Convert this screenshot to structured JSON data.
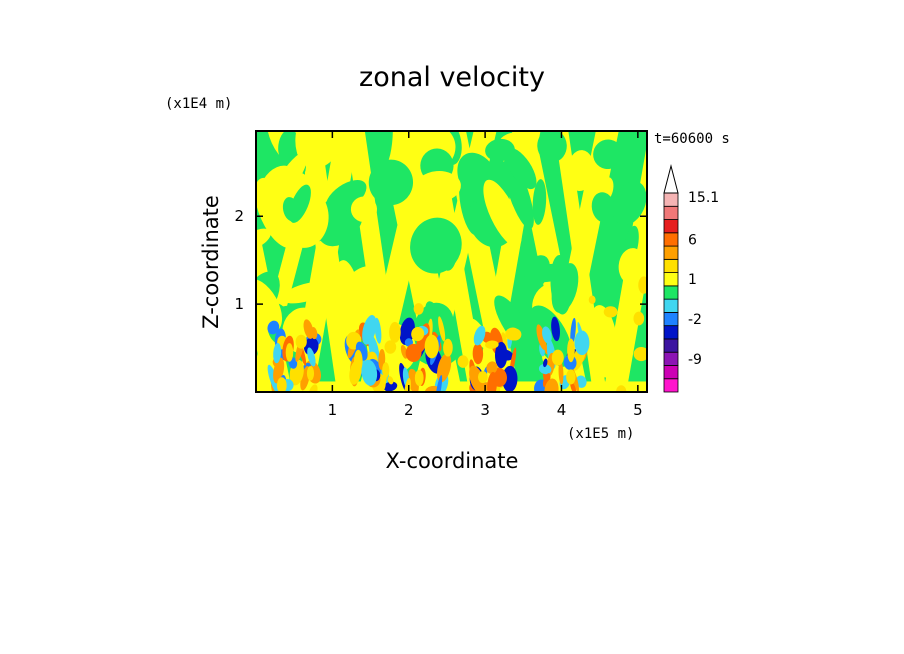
{
  "chart_data": {
    "type": "heatmap",
    "title": "zonal velocity",
    "xlabel": "X-coordinate",
    "ylabel": "Z-coordinate",
    "x_scale_label": "(x1E5 m)",
    "y_scale_label": "(x1E4 m)",
    "time_label": "t=60600 s",
    "xlim": [
      0,
      5.12
    ],
    "ylim": [
      0,
      2.97
    ],
    "x_ticks": [
      1,
      2,
      3,
      4,
      5
    ],
    "y_ticks": [
      1,
      2
    ],
    "colorbar": {
      "levels": [
        -15,
        -12,
        -9,
        -6,
        -3,
        -2,
        -1,
        0,
        1,
        2,
        3,
        6,
        9,
        12,
        15.1
      ],
      "colors": [
        "#ff14cc",
        "#cc00b4",
        "#8c14b4",
        "#3c14a0",
        "#0014c8",
        "#1e82ff",
        "#40d6f0",
        "#1ee664",
        "#ffff14",
        "#ffe000",
        "#ffa000",
        "#ff6e00",
        "#e61e1e",
        "#f07878",
        "#f5b4b4"
      ],
      "tick_labels": [
        "15.1",
        "6",
        "1",
        "-2",
        "-9"
      ],
      "tick_values": [
        15.1,
        6,
        1,
        -2,
        -9
      ],
      "extend": "max"
    },
    "field_description_values": {
      "background_positive": 0.5,
      "background_negative": -0.5
    },
    "grid": false,
    "legend": "colorbar-right"
  }
}
